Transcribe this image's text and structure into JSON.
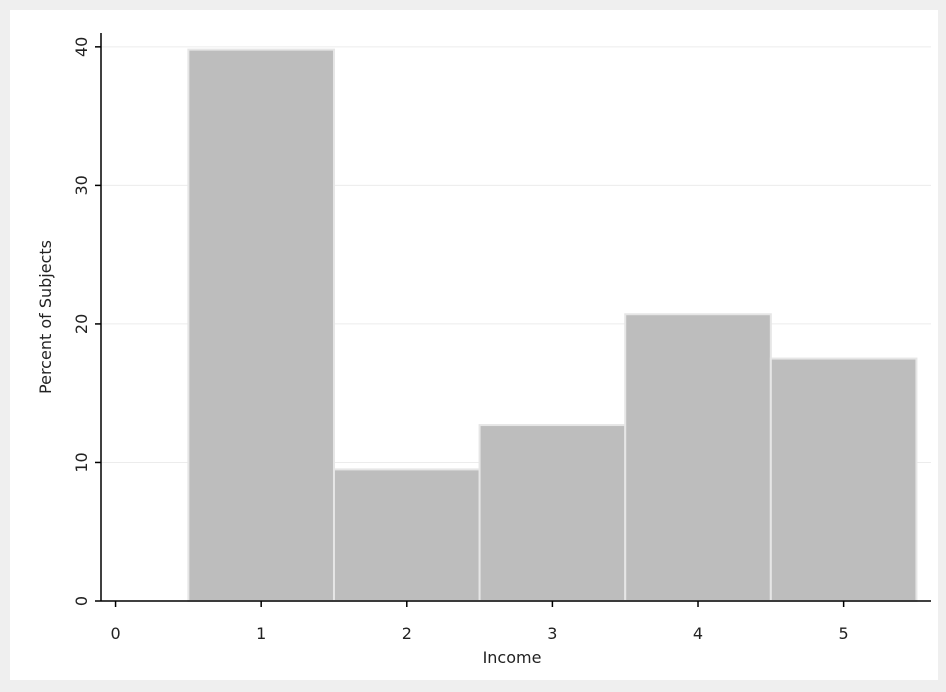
{
  "chart_data": {
    "type": "bar",
    "title": "",
    "xlabel": "Income",
    "ylabel": "Percent of Subjects",
    "categories": [
      1,
      2,
      3,
      4,
      5
    ],
    "values": [
      39.8,
      9.5,
      12.7,
      20.7,
      17.5
    ],
    "bar_width": 1,
    "xlim": [
      -0.1,
      5.6
    ],
    "ylim": [
      0,
      41
    ],
    "xticks": [
      "0",
      "1",
      "2",
      "3",
      "4",
      "5"
    ],
    "yticks": [
      "0",
      "10",
      "20",
      "30",
      "40"
    ],
    "grid": "horizontal",
    "colors": {
      "bar": "#bdbdbd",
      "bar_edge": "#e6e6e6",
      "outer_background": "#efefef",
      "plot_background": "#ffffff",
      "grid": "#ececec",
      "axis": "#000000"
    }
  }
}
